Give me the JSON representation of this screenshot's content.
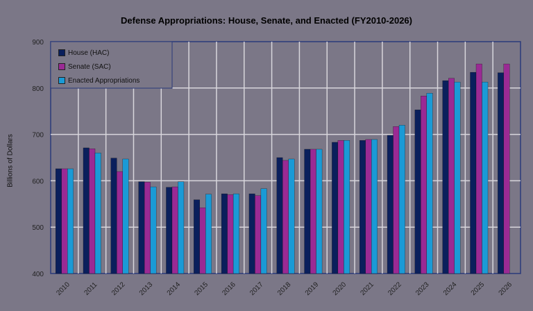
{
  "chart_data": {
    "type": "bar",
    "title": "Defense Appropriations: House, Senate, and Enacted (FY2010-2026)",
    "xlabel": "",
    "ylabel": "Billions of Dollars",
    "ylim": [
      400,
      900
    ],
    "yticks": [
      400,
      500,
      600,
      700,
      800,
      900
    ],
    "grid": true,
    "legend_position": "upper-left-inside",
    "categories": [
      "2010",
      "2011",
      "2012",
      "2013",
      "2014",
      "2015",
      "2016",
      "2017",
      "2018",
      "2019",
      "2020",
      "2021",
      "2022",
      "2023",
      "2024",
      "2025",
      "2026"
    ],
    "series": [
      {
        "name": "House (HAC)",
        "color": "#0a1f5c",
        "values": [
          626,
          671,
          649,
          598,
          586,
          559,
          572,
          572,
          650,
          668,
          683,
          687,
          698,
          753,
          816,
          834,
          833
        ]
      },
      {
        "name": "Senate (SAC)",
        "color": "#9a2a94",
        "values": [
          626,
          669,
          620,
          597,
          587,
          542,
          570,
          568,
          644,
          668,
          687,
          689,
          717,
          783,
          821,
          852,
          852
        ]
      },
      {
        "name": "Enacted Appropriations",
        "color": "#1a9ad6",
        "values": [
          626,
          660,
          647,
          587,
          598,
          571,
          572,
          583,
          647,
          668,
          687,
          689,
          720,
          789,
          813,
          813,
          null
        ]
      }
    ]
  },
  "colors": {
    "background": "#7b7787",
    "grid": "#d8d6dc",
    "axis": "#2a3a7a"
  }
}
